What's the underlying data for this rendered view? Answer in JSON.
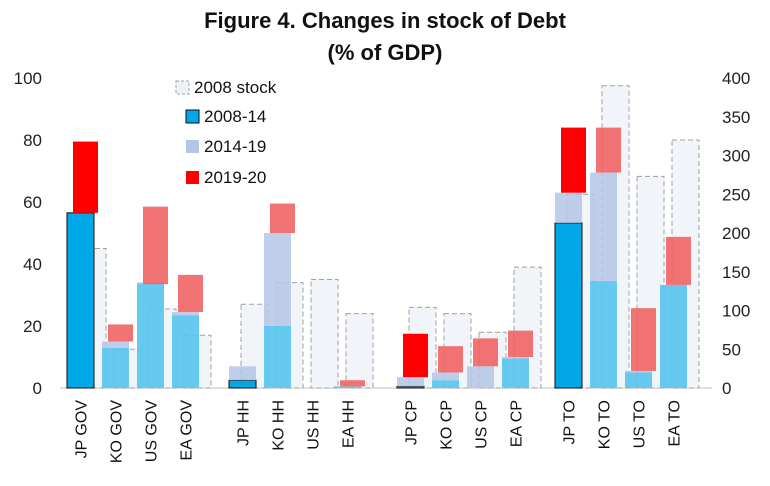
{
  "chart_data": {
    "type": "bar",
    "title_line1": "Figure 4. Changes in stock of Debt",
    "title_line2": "(% of GDP)",
    "y_left": {
      "min": 0,
      "max": 100,
      "ticks": [
        "0",
        "20",
        "40",
        "60",
        "80",
        "100"
      ]
    },
    "y_right": {
      "min": 0,
      "max": 400,
      "ticks": [
        "0",
        "50",
        "100",
        "150",
        "200",
        "250",
        "300",
        "350",
        "400"
      ]
    },
    "legend": {
      "placement": "top-left",
      "items": [
        {
          "label": "2008 stock",
          "key": "stock2008"
        },
        {
          "label": "2008-14",
          "key": "c0814"
        },
        {
          "label": "2014-19",
          "key": "c1419"
        },
        {
          "label": "2019-20",
          "key": "c1920"
        }
      ]
    },
    "colors": {
      "stock2008_fill": "#eef2f8",
      "stock2008_border": "#a0a0a0",
      "c0814": "#00a8e8",
      "c0814_light": "#55c4ee",
      "c1419": "#b4c6e6",
      "c1920": "#ff0000",
      "c1920_light": "#f05a5a"
    },
    "groups": [
      {
        "name": "GOV",
        "categories": [
          {
            "label": "JP GOV",
            "axis": "left",
            "stock2008": 45,
            "c0814": 56.5,
            "c1419": 56.5,
            "c1920": 79.5
          },
          {
            "label": "KO GOV",
            "axis": "left",
            "stock2008": 12.5,
            "c0814": 13,
            "c1419": 15,
            "c1920": 20.5
          },
          {
            "label": "US GOV",
            "axis": "left",
            "stock2008": 25.5,
            "c0814": 34,
            "c1419": 33.5,
            "c1920": 58.5
          },
          {
            "label": "EA GOV",
            "axis": "left",
            "stock2008": 17,
            "c0814": 23.5,
            "c1419": 24.5,
            "c1920": 36.5
          }
        ]
      },
      {
        "name": "HH",
        "categories": [
          {
            "label": "JP HH",
            "axis": "left",
            "stock2008": 27,
            "c0814": 2.5,
            "c1419": 7,
            "c1920": 7
          },
          {
            "label": "KO HH",
            "axis": "left",
            "stock2008": 34,
            "c0814": 20,
            "c1419": 50,
            "c1920": 59.5
          },
          {
            "label": "US HH",
            "axis": "left",
            "stock2008": 35,
            "c0814": 0,
            "c1419": 0,
            "c1920": 0
          },
          {
            "label": "EA HH",
            "axis": "left",
            "stock2008": 24,
            "c0814": 0.5,
            "c1419": 0.5,
            "c1920": 2.5
          }
        ]
      },
      {
        "name": "CP",
        "categories": [
          {
            "label": "JP CP",
            "axis": "left",
            "stock2008": 26,
            "c0814": 0.5,
            "c1419": 3.5,
            "c1920": 17.5
          },
          {
            "label": "KO CP",
            "axis": "left",
            "stock2008": 24,
            "c0814": 2.5,
            "c1419": 5,
            "c1920": 13.5
          },
          {
            "label": "US CP",
            "axis": "left",
            "stock2008": 18,
            "c0814": 0,
            "c1419": 7,
            "c1920": 16
          },
          {
            "label": "EA CP",
            "axis": "left",
            "stock2008": 39,
            "c0814": 9.5,
            "c1419": 10,
            "c1920": 18.5
          }
        ]
      },
      {
        "name": "TO",
        "categories": [
          {
            "label": "JP TO",
            "axis": "right",
            "stock2008": 250,
            "c0814": 213,
            "c1419": 252,
            "c1920": 336
          },
          {
            "label": "KO TO",
            "axis": "right",
            "stock2008": 390,
            "c0814": 138,
            "c1419": 278,
            "c1920": 336
          },
          {
            "label": "US TO",
            "axis": "right",
            "stock2008": 273,
            "c0814": 20,
            "c1419": 22,
            "c1920": 103
          },
          {
            "label": "EA TO",
            "axis": "right",
            "stock2008": 320,
            "c0814": 133,
            "c1419": 133,
            "c1920": 195
          }
        ]
      }
    ]
  }
}
